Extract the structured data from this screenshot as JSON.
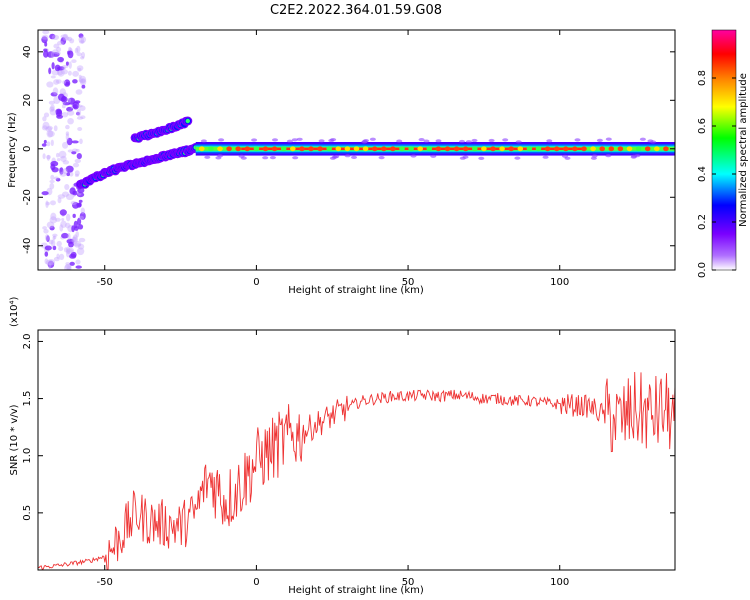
{
  "figure": {
    "title": "C2E2.2022.364.01.59.G08"
  },
  "chart_data": [
    {
      "type": "heatmap",
      "title": "C2E2.2022.364.01.59.G08",
      "xlabel": "Height of straight line (km)",
      "ylabel": "Frequency (Hz)",
      "xlim": [
        -72,
        138
      ],
      "ylim": [
        -50,
        49
      ],
      "xticks": [
        -50,
        0,
        50,
        100
      ],
      "yticks": [
        -40,
        -20,
        0,
        20,
        40
      ],
      "colorbar": {
        "label": "Normalized spectral amplitude",
        "range": [
          0,
          1
        ],
        "ticks": [
          0.0,
          0.2,
          0.4,
          0.6,
          0.8
        ],
        "colormap": [
          "#ffffff",
          "#7a00ff",
          "#0000ff",
          "#00ffff",
          "#00ff00",
          "#ffff00",
          "#ff7f00",
          "#ff0000",
          "#ff00a0"
        ]
      },
      "features": [
        {
          "name": "upper branch",
          "x": [
            -40,
            -35,
            -30,
            -25,
            -22
          ],
          "y": [
            4,
            6,
            8,
            10,
            12
          ]
        },
        {
          "name": "lower branch",
          "x": [
            -58,
            -50,
            -40,
            -30,
            -20
          ],
          "y": [
            -15,
            -10,
            -6,
            -3,
            0
          ]
        },
        {
          "name": "zero-frequency ridge",
          "x": [
            -20,
            138
          ],
          "y": [
            0,
            0
          ]
        }
      ]
    },
    {
      "type": "line",
      "xlabel": "Height of straight line (km)",
      "ylabel": "SNR (10 * v/v)",
      "y_scale_label": "(x10⁴)",
      "xlim": [
        -72,
        138
      ],
      "ylim": [
        0,
        2.1
      ],
      "xticks": [
        -50,
        0,
        50,
        100
      ],
      "yticks": [
        0.5,
        1.0,
        1.5,
        2.0
      ],
      "series": [
        {
          "color": "#ee3333",
          "x": [
            -72,
            -65,
            -60,
            -55,
            -50,
            -47,
            -45,
            -42,
            -40,
            -35,
            -30,
            -25,
            -20,
            -17,
            -15,
            -10,
            -5,
            0,
            5,
            10,
            15,
            20,
            25,
            30,
            35,
            40,
            45,
            50,
            55,
            60,
            65,
            70,
            75,
            80,
            85,
            90,
            95,
            100,
            105,
            110,
            115,
            120,
            125,
            130,
            135,
            138
          ],
          "y": [
            0.02,
            0.04,
            0.06,
            0.08,
            0.12,
            0.2,
            0.3,
            0.4,
            0.5,
            0.42,
            0.4,
            0.38,
            0.5,
            0.75,
            0.8,
            0.6,
            0.75,
            0.95,
            1.05,
            1.15,
            1.2,
            1.28,
            1.35,
            1.42,
            1.48,
            1.5,
            1.52,
            1.52,
            1.53,
            1.52,
            1.53,
            1.52,
            1.5,
            1.5,
            1.48,
            1.48,
            1.46,
            1.45,
            1.44,
            1.43,
            1.35,
            1.3,
            1.4,
            1.35,
            1.4,
            1.3
          ]
        }
      ]
    }
  ]
}
